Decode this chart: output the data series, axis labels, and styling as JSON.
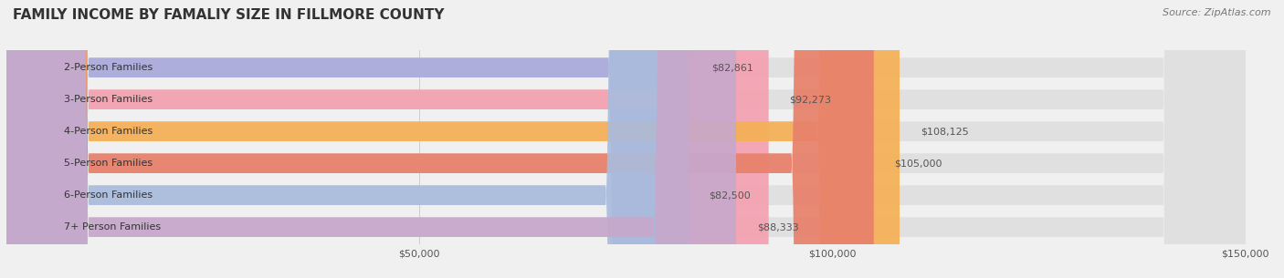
{
  "title": "FAMILY INCOME BY FAMALIY SIZE IN FILLMORE COUNTY",
  "source": "Source: ZipAtlas.com",
  "categories": [
    "2-Person Families",
    "3-Person Families",
    "4-Person Families",
    "5-Person Families",
    "6-Person Families",
    "7+ Person Families"
  ],
  "values": [
    82861,
    92273,
    108125,
    105000,
    82500,
    88333
  ],
  "labels": [
    "$82,861",
    "$92,273",
    "$108,125",
    "$105,000",
    "$82,500",
    "$88,333"
  ],
  "bar_colors": [
    "#aaaadd",
    "#f4a0b0",
    "#f5b055",
    "#e8806a",
    "#aabcdd",
    "#c8a8cc"
  ],
  "background_color": "#f0f0f0",
  "xlim": [
    0,
    150000
  ],
  "xticks": [
    50000,
    100000,
    150000
  ],
  "xtick_labels": [
    "$50,000",
    "$100,000",
    "$150,000"
  ],
  "title_fontsize": 11,
  "label_fontsize": 8,
  "tick_fontsize": 8,
  "source_fontsize": 8
}
